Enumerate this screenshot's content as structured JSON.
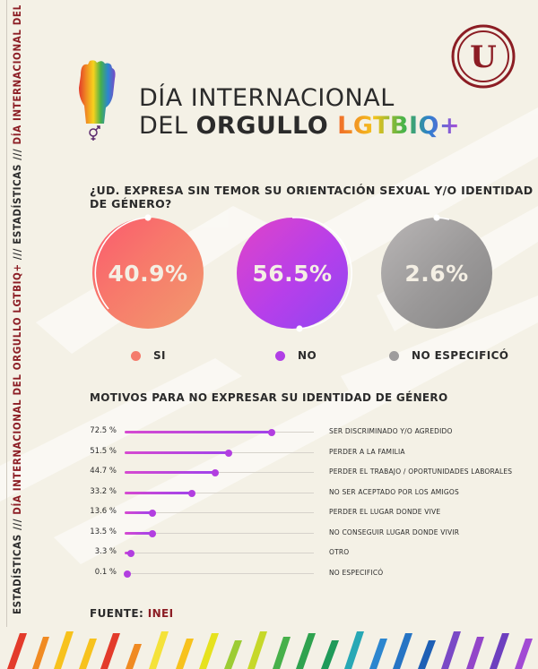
{
  "side_text": {
    "dark_1": "ESTADÍSTICAS ///",
    "red_1": " DÍA INTERNACIONAL DEL ORGULLO LGTBIQ+ ",
    "dark_2": "/// ESTADÍSTICAS ///",
    "red_2": " DÍA INTERNACIONAL DEL ORGULLO LGTBIQ+"
  },
  "header": {
    "title_line1": "DÍA INTERNACIONAL",
    "title_line2_a": "DEL ",
    "title_line2_b": "ORGULLO ",
    "title_line2_c": "LGTBIQ+",
    "logo_letter": "U"
  },
  "colors": {
    "accent_red": "#8c1d24",
    "si": "#f47b6c",
    "no": "#b13fe6",
    "no_especifico": "#9e9c9c",
    "bar": "#b23ee0"
  },
  "chart_data": [
    {
      "type": "pie",
      "title": "¿UD. EXPRESA SIN TEMOR SU ORIENTACIÓN SEXUAL Y/O IDENTIDAD DE GÉNERO?",
      "categories": [
        "SI",
        "NO",
        "NO ESPECIFICÓ"
      ],
      "values": [
        40.9,
        56.5,
        2.6
      ],
      "labels": [
        "40.9%",
        "56.5%",
        "2.6%"
      ]
    },
    {
      "type": "bar",
      "title": "MOTIVOS PARA NO EXPRESAR SU IDENTIDAD DE GÉNERO",
      "categories": [
        "SER DISCRIMINADO Y/O AGREDIDO",
        "PERDER A LA FAMILIA",
        "PERDER EL TRABAJO / OPORTUNIDADES LABORALES",
        "NO SER ACEPTADO POR LOS AMIGOS",
        "PERDER EL LUGAR DONDE VIVE",
        "NO CONSEGUIR LUGAR DONDE VIVIR",
        "OTRO",
        "NO ESPECIFICÓ"
      ],
      "values": [
        72.5,
        51.5,
        44.7,
        33.2,
        13.6,
        13.5,
        3.3,
        0.1
      ],
      "labels": [
        "72.5 %",
        "51.5 %",
        "44.7 %",
        "33.2 %",
        "13.6 %",
        "13.5 %",
        "3.3 %",
        "0.1 %"
      ],
      "xlim": [
        0,
        100
      ]
    }
  ],
  "source": {
    "label": "FUENTE: ",
    "value": "INEI"
  }
}
